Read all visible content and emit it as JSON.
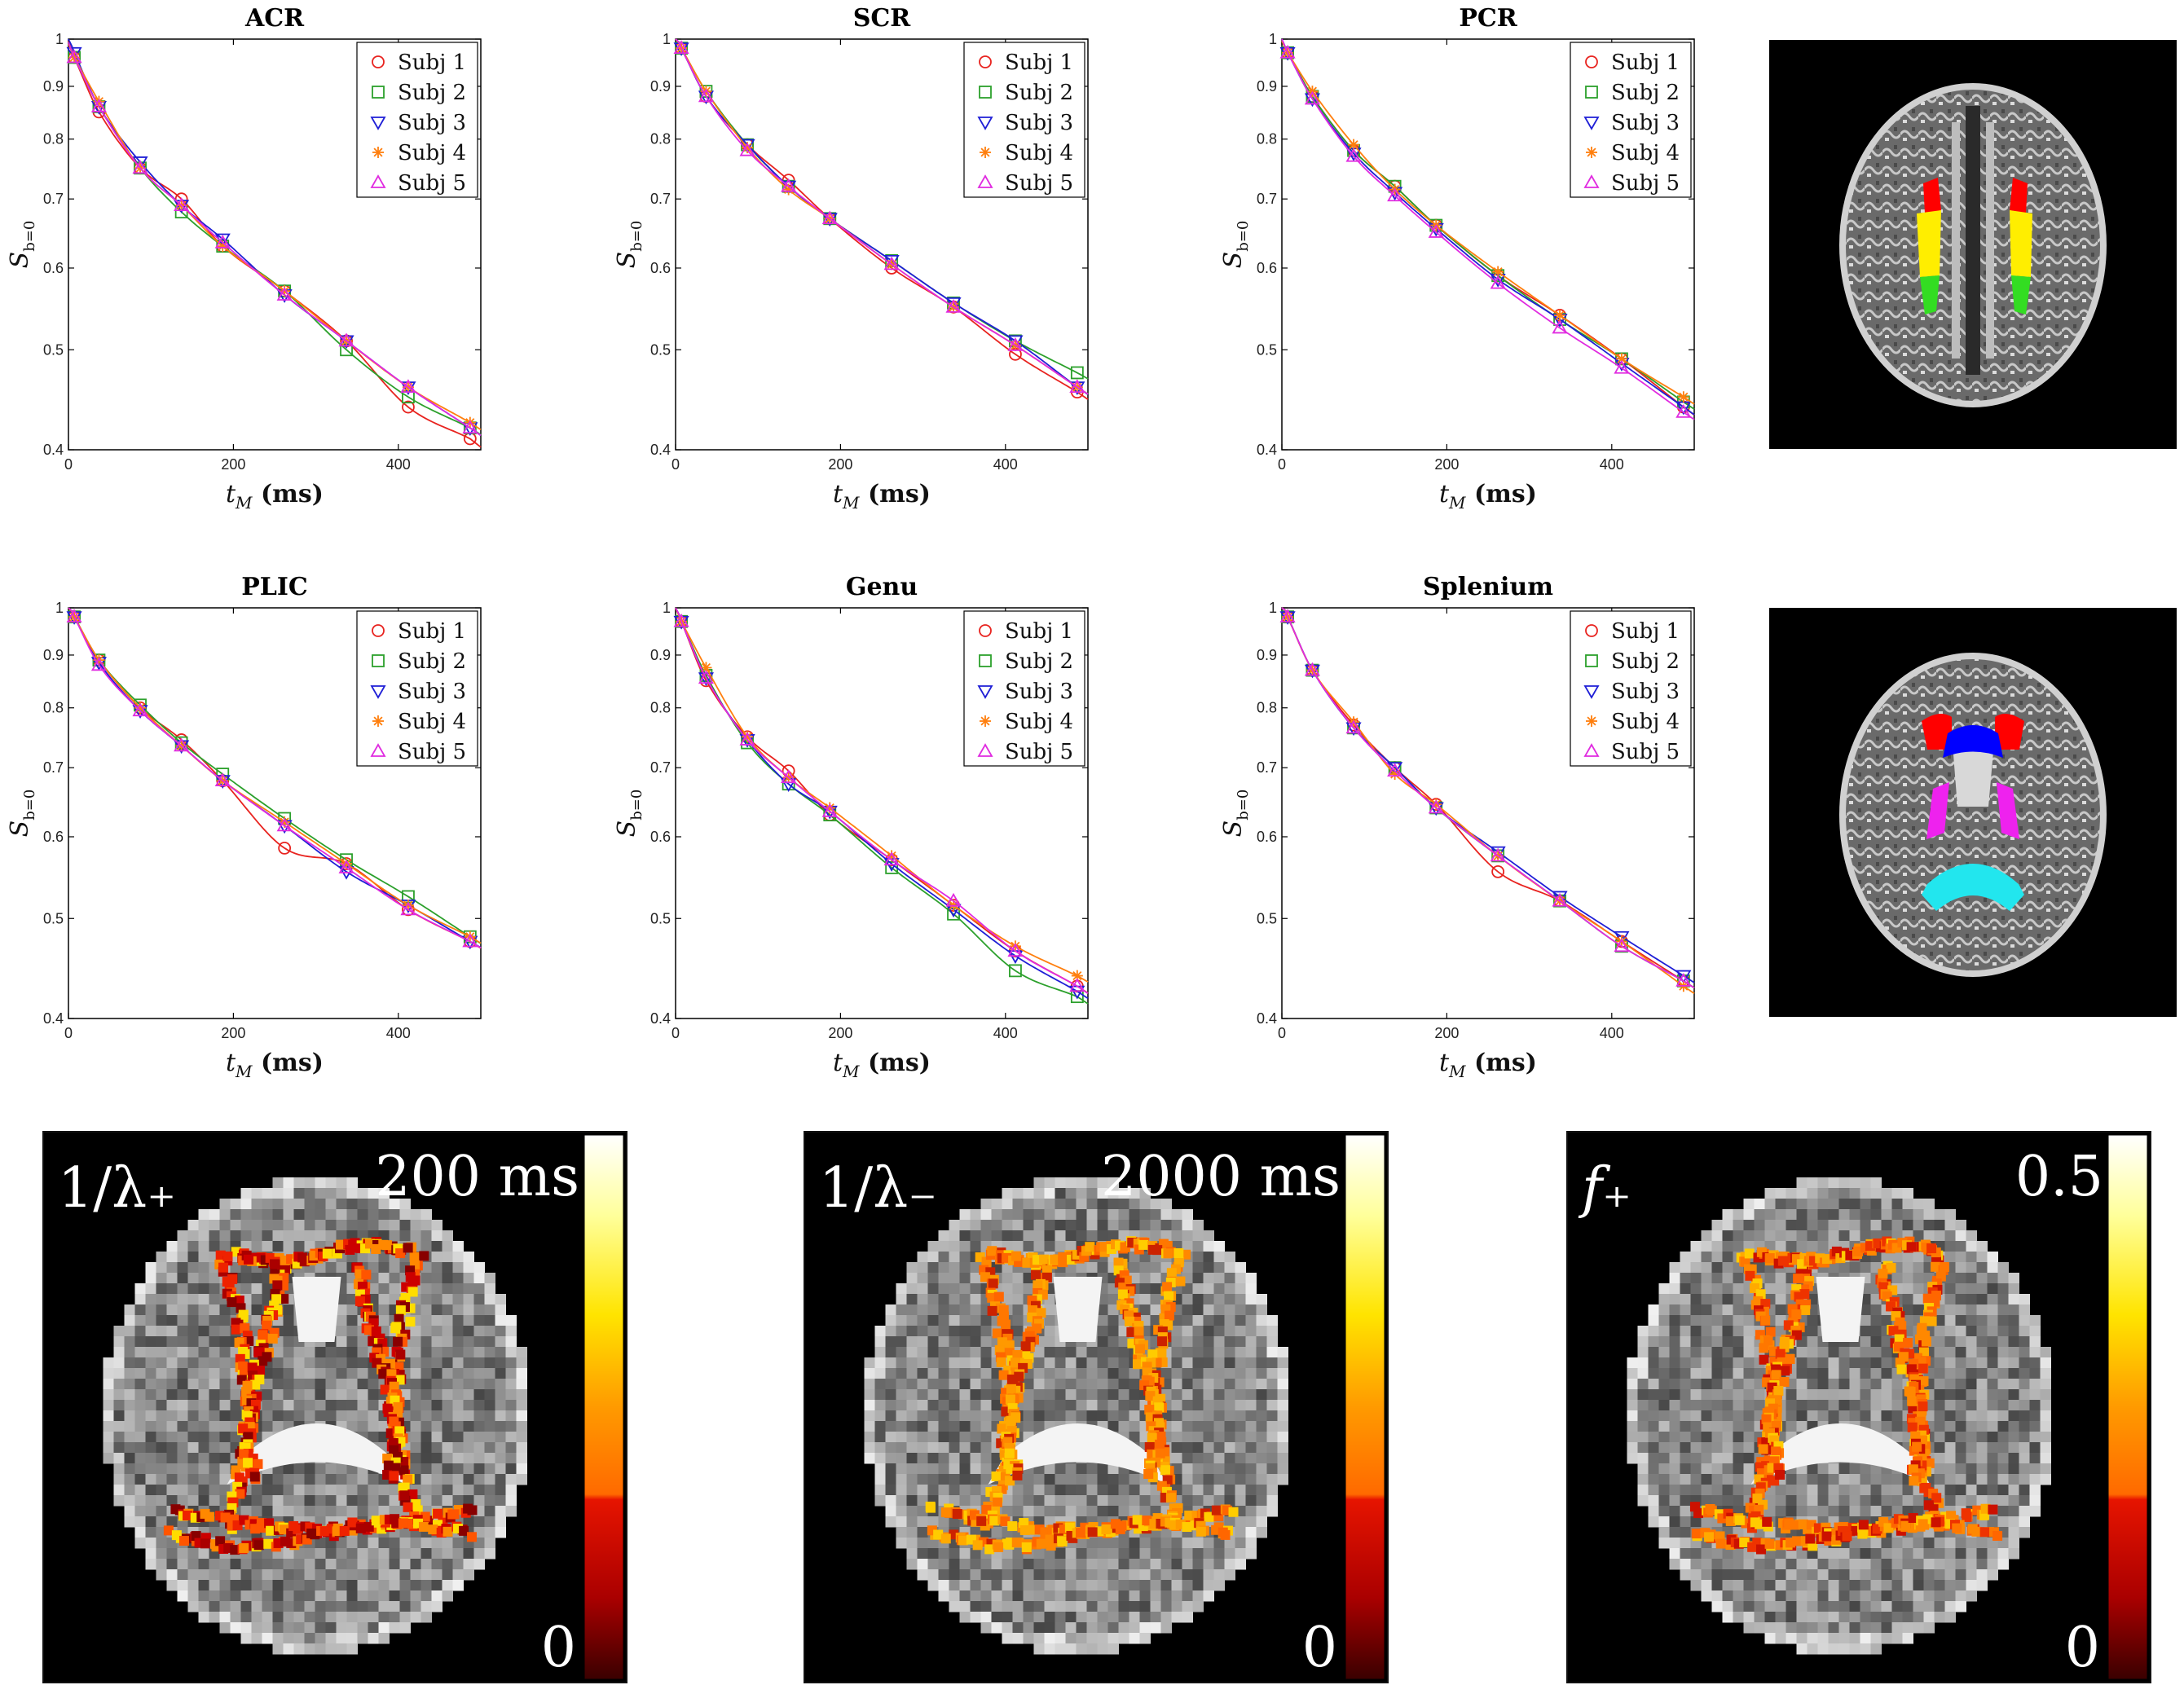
{
  "figure": {
    "legend_entries": [
      "Subj 1",
      "Subj 2",
      "Subj 3",
      "Subj 4",
      "Subj 5"
    ],
    "subject_colors": [
      "#e8231f",
      "#2ca02c",
      "#1f1fd6",
      "#ff7f0e",
      "#e02be0"
    ],
    "subject_markers": [
      "circle",
      "square",
      "triangle-down",
      "asterisk",
      "triangle-up"
    ],
    "roi_colors": {
      "acr": "#ff0000",
      "scr": "#ffee00",
      "pcr": "#33dd22",
      "plic": "#ee22ee",
      "genu": "#0000ff",
      "splenium": "#22e6ee"
    },
    "colormap": [
      "#ffffff",
      "#ffff99",
      "#ffe400",
      "#ff8800",
      "#e01000",
      "#700000",
      "#3a0000"
    ],
    "maps": [
      {
        "label": "1/λ₊",
        "max_label": "200 ms",
        "min_label": "0"
      },
      {
        "label": "1/λ₋",
        "max_label": "2000 ms",
        "min_label": "0"
      },
      {
        "label": "f₊",
        "max_label": "0.5",
        "min_label": "0"
      }
    ]
  },
  "chart_data": [
    {
      "type": "scatter",
      "title": "ACR",
      "xlabel": "t_M  (ms)",
      "ylabel": "S_b=0",
      "xlim": [
        0,
        500
      ],
      "ylim": [
        0.4,
        1.0
      ],
      "yscale": "log",
      "xticks": [
        0,
        200,
        400
      ],
      "yticks": [
        0.4,
        0.5,
        0.6,
        0.7,
        0.8,
        0.9,
        1
      ],
      "x": [
        7,
        37,
        87,
        137,
        187,
        262,
        337,
        412,
        487
      ],
      "series": [
        {
          "name": "Subj 1",
          "values": [
            0.96,
            0.85,
            0.75,
            0.7,
            0.63,
            0.57,
            0.51,
            0.44,
            0.41
          ]
        },
        {
          "name": "Subj 2",
          "values": [
            0.96,
            0.86,
            0.75,
            0.68,
            0.63,
            0.57,
            0.5,
            0.45,
            0.42
          ]
        },
        {
          "name": "Subj 3",
          "values": [
            0.97,
            0.86,
            0.76,
            0.69,
            0.64,
            0.565,
            0.51,
            0.46,
            0.42
          ]
        },
        {
          "name": "Subj 4",
          "values": [
            0.96,
            0.87,
            0.75,
            0.69,
            0.63,
            0.57,
            0.51,
            0.46,
            0.425
          ]
        },
        {
          "name": "Subj 5",
          "values": [
            0.96,
            0.86,
            0.75,
            0.69,
            0.635,
            0.565,
            0.51,
            0.46,
            0.42
          ]
        }
      ]
    },
    {
      "type": "scatter",
      "title": "SCR",
      "xlabel": "t_M  (ms)",
      "ylabel": "S_b=0",
      "xlim": [
        0,
        500
      ],
      "ylim": [
        0.4,
        1.0
      ],
      "yscale": "log",
      "xticks": [
        0,
        200,
        400
      ],
      "yticks": [
        0.4,
        0.5,
        0.6,
        0.7,
        0.8,
        0.9,
        1
      ],
      "x": [
        7,
        37,
        87,
        137,
        187,
        262,
        337,
        412,
        487
      ],
      "series": [
        {
          "name": "Subj 1",
          "values": [
            0.98,
            0.88,
            0.79,
            0.73,
            0.67,
            0.6,
            0.55,
            0.495,
            0.455
          ]
        },
        {
          "name": "Subj 2",
          "values": [
            0.98,
            0.89,
            0.79,
            0.72,
            0.67,
            0.61,
            0.555,
            0.51,
            0.475
          ]
        },
        {
          "name": "Subj 3",
          "values": [
            0.98,
            0.88,
            0.79,
            0.72,
            0.67,
            0.61,
            0.555,
            0.51,
            0.46
          ]
        },
        {
          "name": "Subj 4",
          "values": [
            0.98,
            0.89,
            0.785,
            0.715,
            0.67,
            0.605,
            0.55,
            0.505,
            0.46
          ]
        },
        {
          "name": "Subj 5",
          "values": [
            0.98,
            0.88,
            0.78,
            0.72,
            0.67,
            0.605,
            0.55,
            0.505,
            0.46
          ]
        }
      ]
    },
    {
      "type": "scatter",
      "title": "PCR",
      "xlabel": "t_M  (ms)",
      "ylabel": "S_b=0",
      "xlim": [
        0,
        500
      ],
      "ylim": [
        0.4,
        1.0
      ],
      "yscale": "log",
      "xticks": [
        0,
        200,
        400
      ],
      "yticks": [
        0.4,
        0.5,
        0.6,
        0.7,
        0.8,
        0.9,
        1
      ],
      "x": [
        7,
        37,
        87,
        137,
        187,
        262,
        337,
        412,
        487
      ],
      "series": [
        {
          "name": "Subj 1",
          "values": [
            0.97,
            0.88,
            0.78,
            0.72,
            0.66,
            0.59,
            0.54,
            0.49,
            0.44
          ]
        },
        {
          "name": "Subj 2",
          "values": [
            0.97,
            0.88,
            0.78,
            0.72,
            0.66,
            0.59,
            0.535,
            0.49,
            0.445
          ]
        },
        {
          "name": "Subj 3",
          "values": [
            0.97,
            0.875,
            0.775,
            0.71,
            0.655,
            0.585,
            0.535,
            0.485,
            0.44
          ]
        },
        {
          "name": "Subj 4",
          "values": [
            0.97,
            0.89,
            0.79,
            0.715,
            0.66,
            0.595,
            0.54,
            0.49,
            0.45
          ]
        },
        {
          "name": "Subj 5",
          "values": [
            0.97,
            0.875,
            0.77,
            0.705,
            0.65,
            0.58,
            0.525,
            0.48,
            0.435
          ]
        }
      ]
    },
    {
      "type": "scatter",
      "title": "PLIC",
      "xlabel": "t_M  (ms)",
      "ylabel": "S_b=0",
      "xlim": [
        0,
        500
      ],
      "ylim": [
        0.4,
        1.0
      ],
      "yscale": "log",
      "xticks": [
        0,
        200,
        400
      ],
      "yticks": [
        0.4,
        0.5,
        0.6,
        0.7,
        0.8,
        0.9,
        1
      ],
      "x": [
        7,
        37,
        87,
        137,
        187,
        262,
        337,
        412,
        487
      ],
      "series": [
        {
          "name": "Subj 1",
          "values": [
            0.98,
            0.89,
            0.8,
            0.745,
            0.68,
            0.585,
            0.565,
            0.51,
            0.475
          ]
        },
        {
          "name": "Subj 2",
          "values": [
            0.98,
            0.89,
            0.805,
            0.74,
            0.69,
            0.625,
            0.57,
            0.525,
            0.48
          ]
        },
        {
          "name": "Subj 3",
          "values": [
            0.98,
            0.885,
            0.795,
            0.735,
            0.68,
            0.615,
            0.555,
            0.515,
            0.475
          ]
        },
        {
          "name": "Subj 4",
          "values": [
            0.98,
            0.89,
            0.8,
            0.735,
            0.68,
            0.62,
            0.565,
            0.515,
            0.48
          ]
        },
        {
          "name": "Subj 5",
          "values": [
            0.98,
            0.88,
            0.795,
            0.735,
            0.68,
            0.615,
            0.56,
            0.51,
            0.475
          ]
        }
      ]
    },
    {
      "type": "scatter",
      "title": "Genu",
      "xlabel": "t_M  (ms)",
      "ylabel": "S_b=0",
      "xlim": [
        0,
        500
      ],
      "ylim": [
        0.4,
        1.0
      ],
      "yscale": "log",
      "xticks": [
        0,
        200,
        400
      ],
      "yticks": [
        0.4,
        0.5,
        0.6,
        0.7,
        0.8,
        0.9,
        1
      ],
      "x": [
        7,
        37,
        87,
        137,
        187,
        262,
        337,
        412,
        487
      ],
      "series": [
        {
          "name": "Subj 1",
          "values": [
            0.97,
            0.85,
            0.75,
            0.695,
            0.63,
            0.57,
            0.515,
            0.465,
            0.43
          ]
        },
        {
          "name": "Subj 2",
          "values": [
            0.97,
            0.86,
            0.74,
            0.675,
            0.63,
            0.56,
            0.505,
            0.445,
            0.42
          ]
        },
        {
          "name": "Subj 3",
          "values": [
            0.97,
            0.855,
            0.745,
            0.675,
            0.635,
            0.565,
            0.51,
            0.46,
            0.425
          ]
        },
        {
          "name": "Subj 4",
          "values": [
            0.97,
            0.875,
            0.75,
            0.685,
            0.64,
            0.575,
            0.515,
            0.47,
            0.44
          ]
        },
        {
          "name": "Subj 5",
          "values": [
            0.97,
            0.855,
            0.745,
            0.685,
            0.635,
            0.57,
            0.52,
            0.465,
            0.43
          ]
        }
      ]
    },
    {
      "type": "scatter",
      "title": "Splenium",
      "xlabel": "t_M  (ms)",
      "ylabel": "S_b=0",
      "xlim": [
        0,
        500
      ],
      "ylim": [
        0.4,
        1.0
      ],
      "yscale": "log",
      "xticks": [
        0,
        200,
        400
      ],
      "yticks": [
        0.4,
        0.5,
        0.6,
        0.7,
        0.8,
        0.9,
        1
      ],
      "x": [
        7,
        37,
        87,
        137,
        187,
        262,
        337,
        412,
        487
      ],
      "series": [
        {
          "name": "Subj 1",
          "values": [
            0.98,
            0.87,
            0.77,
            0.7,
            0.645,
            0.555,
            0.52,
            0.475,
            0.435
          ]
        },
        {
          "name": "Subj 2",
          "values": [
            0.98,
            0.87,
            0.765,
            0.7,
            0.64,
            0.575,
            0.52,
            0.47,
            0.435
          ]
        },
        {
          "name": "Subj 3",
          "values": [
            0.98,
            0.87,
            0.765,
            0.7,
            0.64,
            0.58,
            0.525,
            0.48,
            0.44
          ]
        },
        {
          "name": "Subj 4",
          "values": [
            0.98,
            0.87,
            0.775,
            0.69,
            0.645,
            0.575,
            0.52,
            0.475,
            0.43
          ]
        },
        {
          "name": "Subj 5",
          "values": [
            0.98,
            0.87,
            0.765,
            0.695,
            0.64,
            0.575,
            0.52,
            0.47,
            0.435
          ]
        }
      ]
    }
  ]
}
